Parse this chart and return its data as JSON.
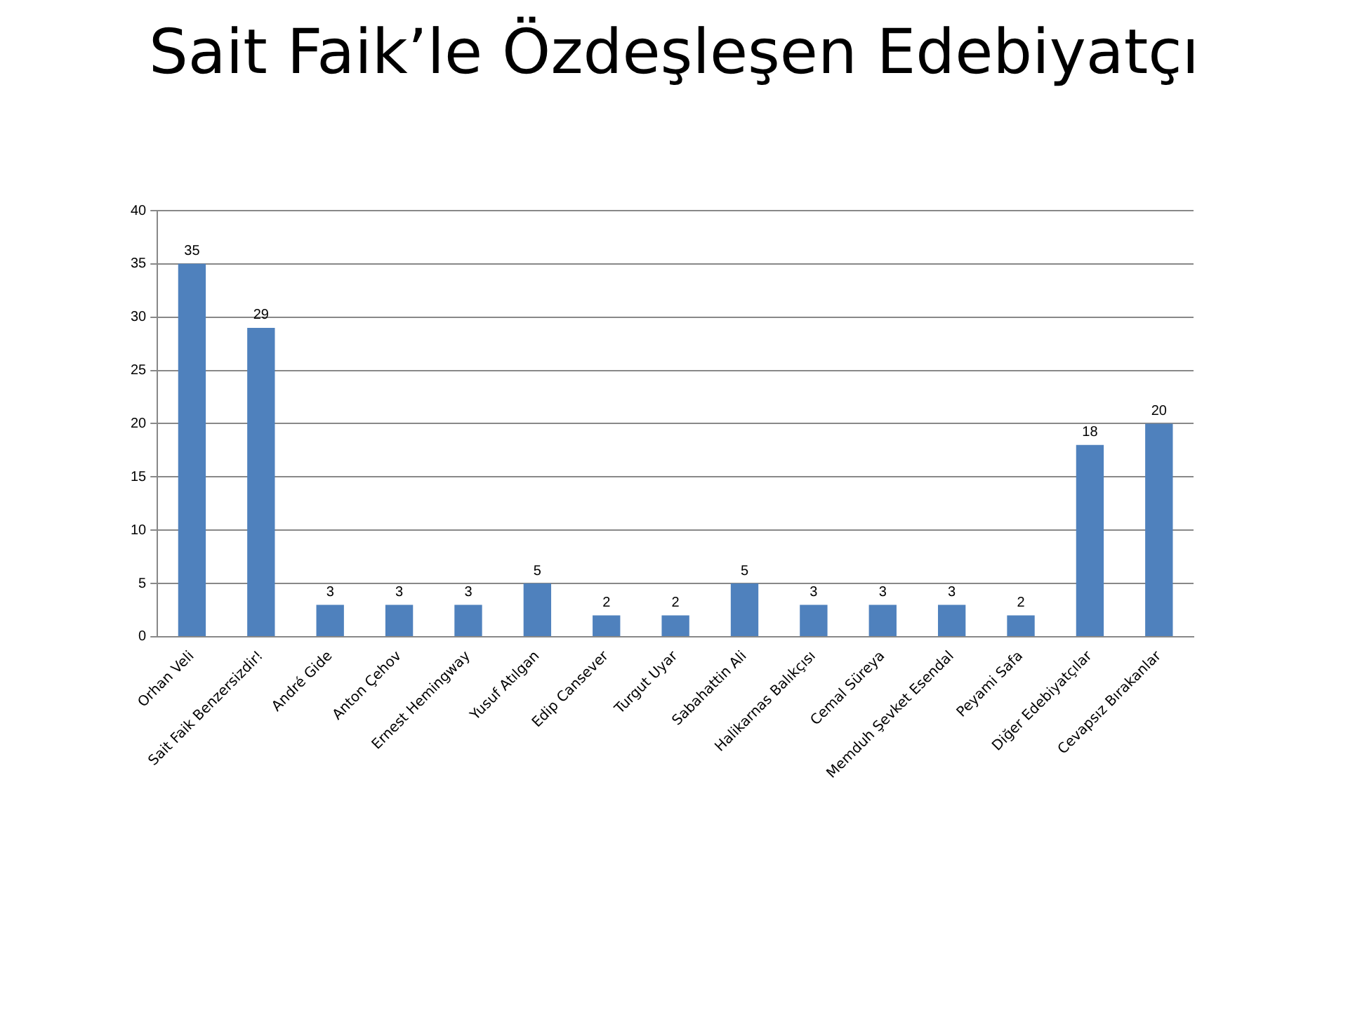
{
  "chart_data": {
    "type": "bar",
    "title": "Sait Faik’le Özdeşleşen Edebiyatçı",
    "categories": [
      "Orhan Veli",
      "Sait Faik Benzersizdir!",
      "André Gide",
      "Anton Çehov",
      "Ernest Hemingway",
      "Yusuf Atılgan",
      "Edip Cansever",
      "Turgut Uyar",
      "Sabahattin Ali",
      "Halikarnas Balıkçısı",
      "Cemal Süreya",
      "Memduh Şevket Esendal",
      "Peyami Safa",
      "Diğer Edebiyatçılar",
      "Cevapsız Bırakanlar"
    ],
    "values": [
      35,
      29,
      3,
      3,
      3,
      5,
      2,
      2,
      5,
      3,
      3,
      3,
      2,
      18,
      20
    ],
    "color": "#4f81bd",
    "ylim": [
      0,
      40
    ],
    "yticks": [
      0,
      5,
      10,
      15,
      20,
      25,
      30,
      35,
      40
    ],
    "grid": "y",
    "data_labels": true,
    "legend": false
  }
}
